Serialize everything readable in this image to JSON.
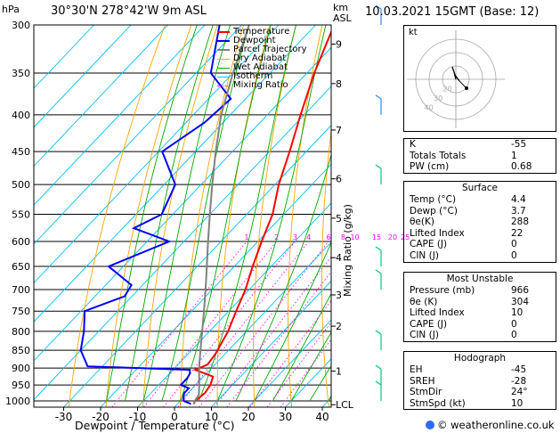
{
  "header": {
    "location": "30°30'N  278°42'W  9m  ASL",
    "datetime": "10.03.2021  15GMT  (Base: 12)",
    "hpa_label": "hPa",
    "km_label": "km\nASL"
  },
  "chart_data": {
    "type": "line",
    "title": "30°30'N  278°42'W  9m  ASL",
    "xlabel": "Dewpoint / Temperature (°C)",
    "ylabel": "hPa",
    "y2label": "Mixing Ratio (g/kg)",
    "xlim": [
      -35,
      40
    ],
    "pressure_levels": [
      300,
      350,
      400,
      450,
      500,
      550,
      600,
      650,
      700,
      750,
      800,
      850,
      900,
      950,
      1000
    ],
    "temp_ticks": [
      -30,
      -20,
      -10,
      0,
      10,
      20,
      30,
      40
    ],
    "km_ticks": [
      {
        "label": "9",
        "p": 319
      },
      {
        "label": "8",
        "p": 362
      },
      {
        "label": "7",
        "p": 420
      },
      {
        "label": "6",
        "p": 491
      },
      {
        "label": "5",
        "p": 557
      },
      {
        "label": "4",
        "p": 632
      },
      {
        "label": "3",
        "p": 712
      },
      {
        "label": "2",
        "p": 787
      },
      {
        "label": "1",
        "p": 909
      },
      {
        "label": "LCL",
        "p": 1012
      }
    ],
    "mixing_ratio_labels": [
      "1",
      "2",
      "3",
      "4",
      "6",
      "8",
      "10",
      "15",
      "20",
      "25"
    ],
    "legend": [
      "Temperature",
      "Dewpoint",
      "Parcel Trajectory",
      "Dry Adiabat",
      "Wet Adiabat",
      "Isotherm",
      "Mixing Ratio"
    ],
    "legend_placement": "top-center",
    "series": [
      {
        "name": "Temperature",
        "color": "#ff0000",
        "points": [
          [
            1010,
            4.4
          ],
          [
            1000,
            4.0
          ],
          [
            975,
            4.6
          ],
          [
            950,
            4.0
          ],
          [
            925,
            2.6
          ],
          [
            905,
            -4.0
          ],
          [
            890,
            -2.0
          ],
          [
            860,
            -2.6
          ],
          [
            850,
            -3.0
          ],
          [
            800,
            -5.0
          ],
          [
            750,
            -8.0
          ],
          [
            700,
            -11.0
          ],
          [
            650,
            -15.0
          ],
          [
            600,
            -19.0
          ],
          [
            550,
            -23.0
          ],
          [
            500,
            -29.0
          ],
          [
            450,
            -34.5
          ],
          [
            400,
            -41.0
          ],
          [
            350,
            -48.0
          ],
          [
            300,
            -55.0
          ]
        ]
      },
      {
        "name": "Dewpoint",
        "color": "#0000ff",
        "points": [
          [
            1010,
            3.7
          ],
          [
            1000,
            1.0
          ],
          [
            990,
            0.0
          ],
          [
            975,
            -1.0
          ],
          [
            960,
            -1.0
          ],
          [
            950,
            -4.0
          ],
          [
            930,
            -4.0
          ],
          [
            915,
            -4.5
          ],
          [
            905,
            -5.5
          ],
          [
            895,
            -34.0
          ],
          [
            850,
            -40.0
          ],
          [
            800,
            -44.0
          ],
          [
            750,
            -49.0
          ],
          [
            715,
            -42.0
          ],
          [
            690,
            -43.0
          ],
          [
            650,
            -54.0
          ],
          [
            600,
            -44.0
          ],
          [
            575,
            -57.0
          ],
          [
            550,
            -53.0
          ],
          [
            500,
            -57.0
          ],
          [
            450,
            -69.0
          ],
          [
            410,
            -65.0
          ],
          [
            380,
            -64.0
          ],
          [
            350,
            -76.0
          ],
          [
            300,
            -86.0
          ]
        ]
      },
      {
        "name": "Parcel Trajectory",
        "color": "#808080",
        "points": [
          [
            1010,
            4.4
          ],
          [
            1000,
            3.9
          ],
          [
            980,
            3.4
          ],
          [
            950,
            1.0
          ],
          [
            900,
            -3.4
          ],
          [
            850,
            -7.6
          ],
          [
            800,
            -12.0
          ],
          [
            750,
            -16.7
          ],
          [
            700,
            -21.8
          ],
          [
            650,
            -27.4
          ],
          [
            600,
            -33.5
          ],
          [
            550,
            -40.0
          ],
          [
            500,
            -47.0
          ],
          [
            450,
            -54.5
          ],
          [
            400,
            -62.5
          ],
          [
            350,
            -70.0
          ],
          [
            300,
            -78.0
          ]
        ]
      }
    ]
  },
  "hodograph": {
    "label": "kt",
    "ring_labels": [
      "40",
      "30",
      "20"
    ]
  },
  "indices": {
    "rows": [
      {
        "label": "K",
        "value": "-55"
      },
      {
        "label": "Totals Totals",
        "value": "1"
      },
      {
        "label": "PW (cm)",
        "value": "0.68"
      }
    ]
  },
  "surface": {
    "title": "Surface",
    "rows": [
      {
        "label": "Temp (°C)",
        "value": "4.4"
      },
      {
        "label": "Dewp (°C)",
        "value": "3.7"
      },
      {
        "label": "θe(K)",
        "value": "288"
      },
      {
        "label": "Lifted Index",
        "value": "22"
      },
      {
        "label": "CAPE (J)",
        "value": "0"
      },
      {
        "label": "CIN (J)",
        "value": "0"
      }
    ]
  },
  "most_unstable": {
    "title": "Most Unstable",
    "rows": [
      {
        "label": "Pressure (mb)",
        "value": "966"
      },
      {
        "label": "θe (K)",
        "value": "304"
      },
      {
        "label": "Lifted Index",
        "value": "10"
      },
      {
        "label": "CAPE (J)",
        "value": "0"
      },
      {
        "label": "CIN (J)",
        "value": "0"
      }
    ]
  },
  "hodo_table": {
    "title": "Hodograph",
    "rows": [
      {
        "label": "EH",
        "value": "-45"
      },
      {
        "label": "SREH",
        "value": "-28"
      },
      {
        "label": "StmDir",
        "value": "24°"
      },
      {
        "label": "StmSpd (kt)",
        "value": "10"
      }
    ]
  },
  "footer": {
    "text": "© weatheronline.co.uk"
  },
  "colors": {
    "temperature": "#ff0000",
    "dewpoint": "#0000ff",
    "parcel": "#808080",
    "dry_adiabat": "#ffa500",
    "wet_adiabat": "#00aa00",
    "isotherm": "#00bfff",
    "mixing_ratio": "#ff00ff",
    "wind_barb": "#00c878",
    "wind_barb_top": "#2a8cff"
  }
}
